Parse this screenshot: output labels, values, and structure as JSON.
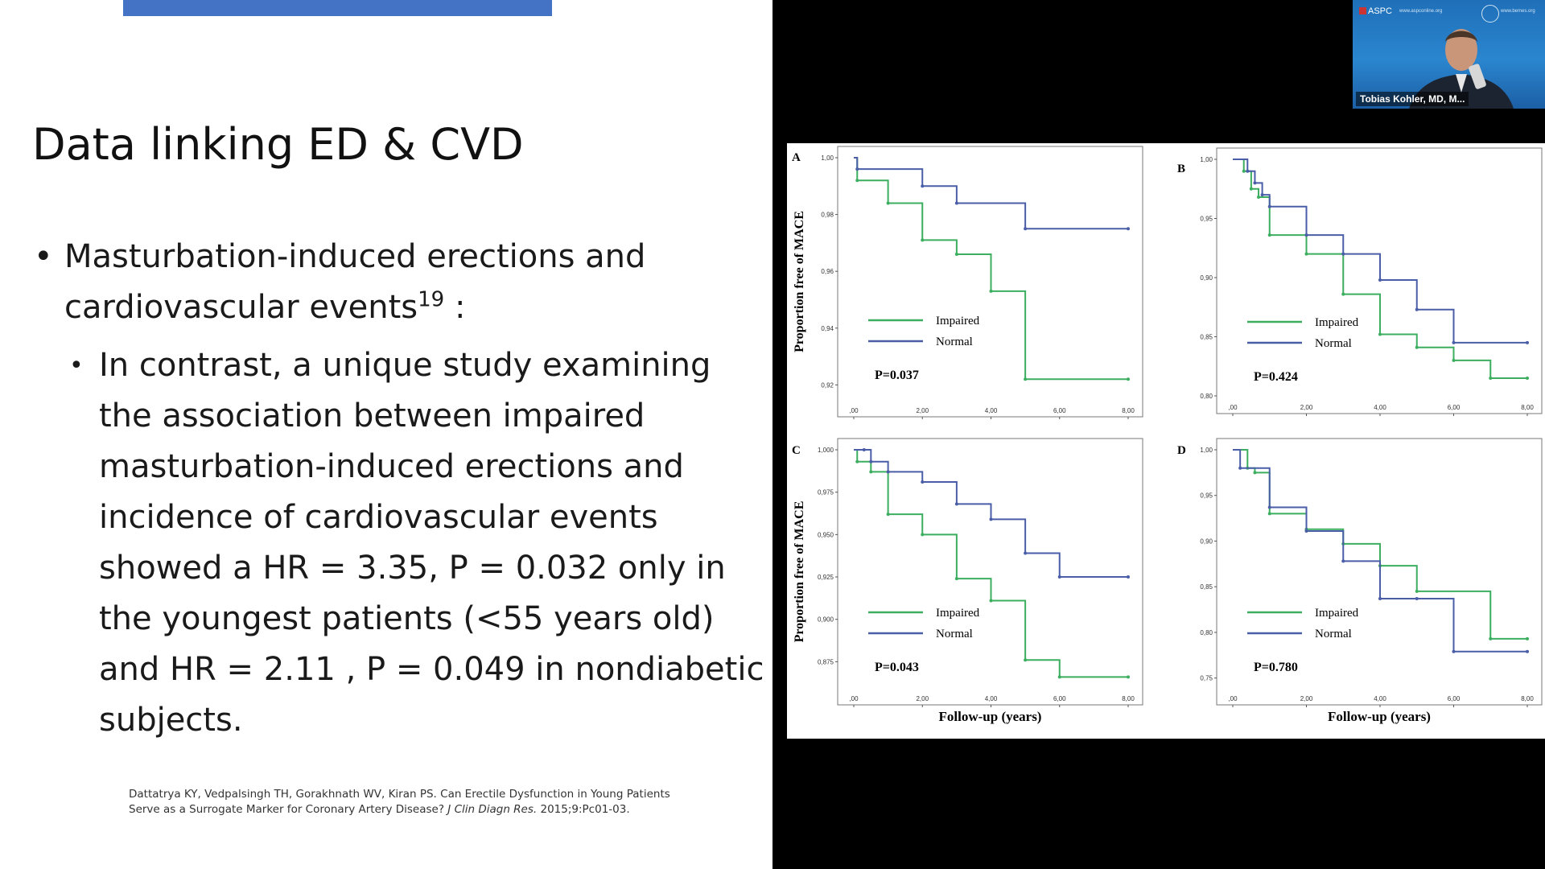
{
  "slide": {
    "title": "Data linking ED & CVD",
    "bullet1_text": "Masturbation-induced erections and cardiovascular events",
    "bullet1_sup": "19",
    "bullet1_suffix": " :",
    "bullet2_text": "In contrast, a unique study examining the association between impaired masturbation-induced erections and incidence of cardiovascular events showed a HR = 3.35, P = 0.032 only in the youngest patients (<55 years old) and HR = 2.11 , P = 0.049 in nondiabetic subjects.",
    "citation_line1": "Dattatrya KY, Vedpalsingh TH, Gorakhnath WV, Kiran PS. Can Erectile Dysfunction in Young Patients",
    "citation_line2_a": "Serve as a Surrogate Marker for Coronary Artery Disease? ",
    "citation_journal": "J Clin Diagn Res.",
    "citation_line2_b": " 2015;9:Pc01-03."
  },
  "video_tile": {
    "logo_text": "ASPC",
    "url_text": "www.aspconline.org",
    "url2_text": "www.bemes.org",
    "participant_name": "Tobias Kohler, MD, M...",
    "background_color": "#2a7cc6"
  },
  "chart_data": [
    {
      "type": "line",
      "panel": "A",
      "ylabel": "Proportion free of MACE",
      "xlabel": "",
      "xlim": [
        0,
        8
      ],
      "ylim": [
        0.915,
        1.0
      ],
      "yticks": [
        1.0,
        0.98,
        0.96,
        0.94,
        0.92
      ],
      "ytick_labels": [
        "1,00",
        "0,98",
        "0,96",
        "0,94",
        "0,92"
      ],
      "xticks": [
        0,
        2,
        4,
        6,
        8
      ],
      "xtick_labels": [
        ",00",
        "2,00",
        "4,00",
        "6,00",
        "8,00"
      ],
      "annotation": "P=0.037",
      "series": [
        {
          "name": "Impaired",
          "color": "#3cae5f",
          "x": [
            0,
            0.1,
            1,
            2,
            3,
            4,
            5,
            8
          ],
          "y": [
            1.0,
            0.992,
            0.984,
            0.971,
            0.966,
            0.953,
            0.922,
            0.922
          ]
        },
        {
          "name": "Normal",
          "color": "#4a5ea8",
          "x": [
            0,
            0.1,
            2,
            3,
            5,
            8
          ],
          "y": [
            1.0,
            0.996,
            0.99,
            0.984,
            0.975,
            0.975
          ]
        }
      ]
    },
    {
      "type": "line",
      "panel": "B",
      "ylabel": "",
      "xlabel": "",
      "xlim": [
        0,
        8
      ],
      "ylim": [
        0.8,
        1.0
      ],
      "yticks": [
        1.0,
        0.95,
        0.9,
        0.85,
        0.8
      ],
      "ytick_labels": [
        "1,00",
        "0,95",
        "0,90",
        "0,85",
        "0,80"
      ],
      "xticks": [
        0,
        2,
        4,
        6,
        8
      ],
      "xtick_labels": [
        ",00",
        "2,00",
        "4,00",
        "6,00",
        "8,00"
      ],
      "annotation": "P=0.424",
      "series": [
        {
          "name": "Impaired",
          "color": "#3cae5f",
          "x": [
            0,
            0.3,
            0.5,
            0.7,
            1,
            2,
            3,
            4,
            5,
            6,
            7,
            8
          ],
          "y": [
            1.0,
            0.99,
            0.975,
            0.968,
            0.936,
            0.92,
            0.886,
            0.852,
            0.841,
            0.83,
            0.815,
            0.815
          ]
        },
        {
          "name": "Normal",
          "color": "#4a5ea8",
          "x": [
            0,
            0.4,
            0.6,
            0.8,
            1,
            2,
            3,
            4,
            5,
            6,
            8
          ],
          "y": [
            1.0,
            0.99,
            0.98,
            0.97,
            0.96,
            0.936,
            0.92,
            0.898,
            0.873,
            0.845,
            0.845
          ]
        }
      ]
    },
    {
      "type": "line",
      "panel": "C",
      "ylabel": "Proportion free of MACE",
      "xlabel": "Follow-up (years)",
      "xlim": [
        0,
        8
      ],
      "ylim": [
        0.86,
        1.0
      ],
      "yticks": [
        1.0,
        0.975,
        0.95,
        0.925,
        0.9,
        0.875
      ],
      "ytick_labels": [
        "1,000",
        "0,975",
        "0,950",
        "0,925",
        "0,900",
        "0,875"
      ],
      "xticks": [
        0,
        2,
        4,
        6,
        8
      ],
      "xtick_labels": [
        ",00",
        "2,00",
        "4,00",
        "6,00",
        "8,00"
      ],
      "annotation": "P=0.043",
      "series": [
        {
          "name": "Impaired",
          "color": "#3cae5f",
          "x": [
            0,
            0.1,
            0.5,
            1,
            2,
            3,
            4,
            5,
            6,
            8
          ],
          "y": [
            1.0,
            0.993,
            0.987,
            0.962,
            0.95,
            0.924,
            0.911,
            0.876,
            0.866,
            0.866
          ]
        },
        {
          "name": "Normal",
          "color": "#4a5ea8",
          "x": [
            0,
            0.3,
            0.5,
            1,
            2,
            3,
            4,
            5,
            6,
            8
          ],
          "y": [
            1.0,
            1.0,
            0.993,
            0.987,
            0.981,
            0.968,
            0.959,
            0.939,
            0.925,
            0.925
          ]
        }
      ]
    },
    {
      "type": "line",
      "panel": "D",
      "ylabel": "",
      "xlabel": "Follow-up (years)",
      "xlim": [
        0,
        8
      ],
      "ylim": [
        0.74,
        1.0
      ],
      "yticks": [
        1.0,
        0.95,
        0.9,
        0.85,
        0.8,
        0.75
      ],
      "ytick_labels": [
        "1,00",
        "0,95",
        "0,90",
        "0,85",
        "0,80",
        "0,75"
      ],
      "xticks": [
        0,
        2,
        4,
        6,
        8
      ],
      "xtick_labels": [
        ",00",
        "2,00",
        "4,00",
        "6,00",
        "8,00"
      ],
      "annotation": "P=0.780",
      "series": [
        {
          "name": "Impaired",
          "color": "#3cae5f",
          "x": [
            0,
            0.4,
            0.6,
            1,
            2,
            3,
            4,
            5,
            7,
            8
          ],
          "y": [
            1.0,
            0.98,
            0.975,
            0.93,
            0.913,
            0.897,
            0.873,
            0.845,
            0.793,
            0.793
          ]
        },
        {
          "name": "Normal",
          "color": "#4a5ea8",
          "x": [
            0,
            0.2,
            1,
            2,
            3,
            4,
            5,
            6,
            8
          ],
          "y": [
            1.0,
            0.98,
            0.937,
            0.911,
            0.878,
            0.837,
            0.837,
            0.779,
            0.779
          ]
        }
      ]
    }
  ]
}
